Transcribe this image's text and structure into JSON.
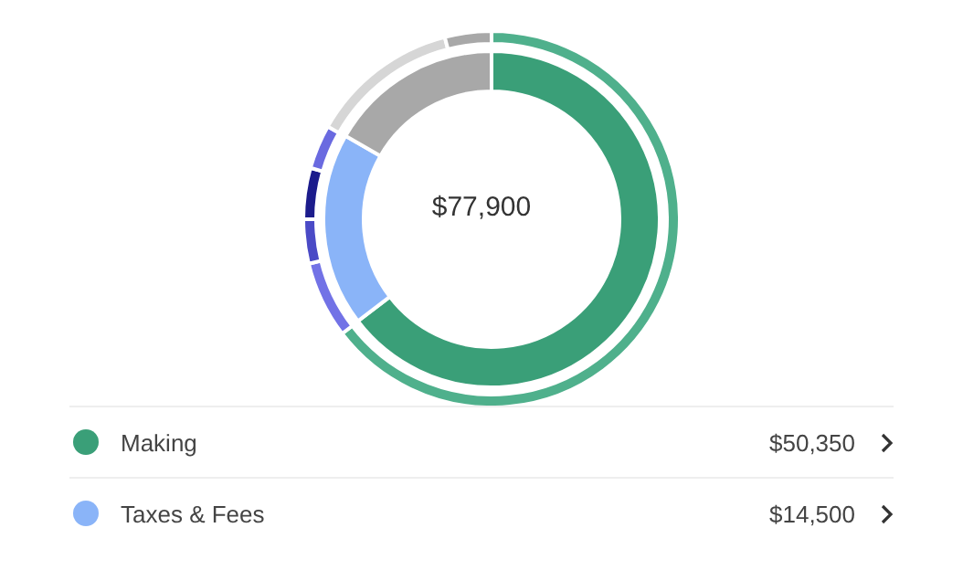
{
  "chart_data": [
    {
      "type": "donut",
      "categories": [
        "Making",
        "Taxes & Fees",
        null
      ],
      "values": [
        50350,
        14500,
        13050
      ],
      "colors": [
        "#3a9f78",
        "#8ab4f8",
        "#a8a8a8"
      ],
      "value_labels": [
        "$50,350",
        "$14,500",
        null
      ],
      "annotations": [
        "$77,900"
      ],
      "legend": "bottom"
    },
    {
      "type": "donut",
      "categories": [
        null,
        null,
        null,
        null,
        null,
        null,
        null
      ],
      "values": [
        64.6,
        6.6,
        3.8,
        4.4,
        3.8,
        12.8,
        4.0
      ],
      "colors": [
        "#4fb08c",
        "#7272e6",
        "#4a4ac6",
        "#1c1c8c",
        "#6a6ae0",
        "#d6d6d6",
        "#a8a8a8"
      ]
    }
  ]
}
